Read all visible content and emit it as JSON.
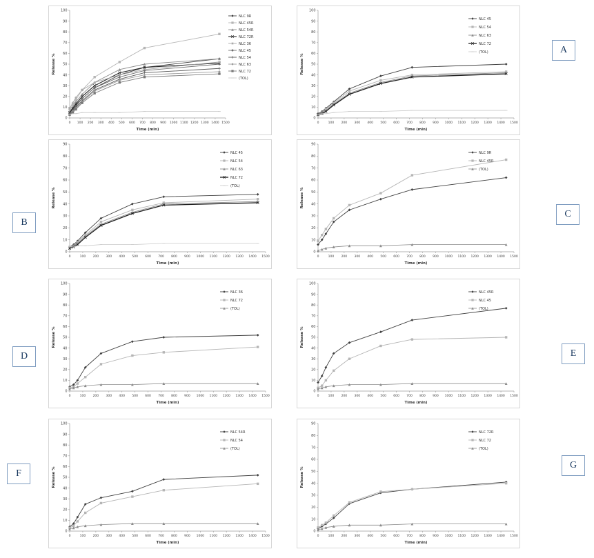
{
  "panel_labels": {
    "A": "A",
    "B": "B",
    "C": "C",
    "D": "D",
    "E": "E",
    "F": "F",
    "G": "G"
  },
  "chart_data": [
    {
      "panel": "overview",
      "type": "line",
      "x": [
        0,
        30,
        60,
        120,
        240,
        480,
        720,
        1440
      ],
      "xlabel": "Time (min)",
      "ylabel": "Release %",
      "xlim": [
        0,
        1500
      ],
      "ylim": [
        0,
        100
      ],
      "xtick_step": 100,
      "ytick_step": 10,
      "legend_position": "right",
      "grid": false,
      "series": [
        {
          "name": "NLC 9R",
          "marker": "diamond",
          "color": "#404040",
          "width": 0.9,
          "values": [
            5,
            8,
            12,
            18,
            28,
            40,
            47,
            55
          ]
        },
        {
          "name": "NLC 45R",
          "marker": "square",
          "color": "#b5b5b5",
          "width": 0.9,
          "values": [
            8,
            12,
            17,
            26,
            38,
            52,
            65,
            78
          ]
        },
        {
          "name": "NLC 54R",
          "marker": "triangle",
          "color": "#8c8c8c",
          "width": 0.9,
          "values": [
            6,
            10,
            15,
            22,
            33,
            45,
            50,
            55
          ]
        },
        {
          "name": "NLC 72R",
          "marker": "x",
          "color": "#262626",
          "width": 1.1,
          "values": [
            5,
            9,
            13,
            20,
            30,
            42,
            47,
            51
          ]
        },
        {
          "name": "NLC 36",
          "marker": "star",
          "color": "#a8a8a8",
          "width": 0.9,
          "values": [
            9,
            14,
            19,
            26,
            33,
            40,
            45,
            52
          ]
        },
        {
          "name": "NLC 45",
          "marker": "circle",
          "color": "#6e6e6e",
          "width": 0.9,
          "values": [
            4,
            7,
            11,
            18,
            28,
            38,
            44,
            50
          ]
        },
        {
          "name": "NLC 54",
          "marker": "plus",
          "color": "#585858",
          "width": 0.9,
          "values": [
            4,
            6,
            10,
            16,
            26,
            36,
            42,
            46
          ]
        },
        {
          "name": "NLC 63",
          "marker": "diamond",
          "color": "#9b9b9b",
          "width": 0.9,
          "values": [
            3,
            6,
            9,
            15,
            25,
            35,
            40,
            43
          ]
        },
        {
          "name": "NLC 72",
          "marker": "square",
          "color": "#787878",
          "width": 0.9,
          "values": [
            3,
            5,
            8,
            14,
            23,
            33,
            38,
            41
          ]
        },
        {
          "name": "(TOL)",
          "marker": "dash",
          "color": "#c6c6c6",
          "width": 0.8,
          "values": [
            3,
            4,
            4,
            5,
            5,
            5,
            6,
            6
          ]
        }
      ]
    },
    {
      "panel": "A",
      "type": "line",
      "x": [
        0,
        30,
        60,
        120,
        240,
        480,
        720,
        1440
      ],
      "xlabel": "Time (min)",
      "ylabel": "Release %",
      "xlim": [
        0,
        1500
      ],
      "ylim": [
        0,
        100
      ],
      "xtick_step": 100,
      "ytick_step": 10,
      "legend_position": "inside",
      "grid": false,
      "series": [
        {
          "name": "NLC 45",
          "marker": "diamond",
          "color": "#404040",
          "width": 0.9,
          "values": [
            4,
            6,
            9,
            15,
            27,
            39,
            47,
            50
          ]
        },
        {
          "name": "NLC 54",
          "marker": "square",
          "color": "#b5b5b5",
          "width": 0.9,
          "values": [
            3,
            5,
            8,
            14,
            25,
            35,
            40,
            43
          ]
        },
        {
          "name": "NLC 63",
          "marker": "triangle",
          "color": "#8c8c8c",
          "width": 0.9,
          "values": [
            3,
            5,
            7,
            13,
            23,
            33,
            39,
            42
          ]
        },
        {
          "name": "NLC 72",
          "marker": "x",
          "color": "#1f1f1f",
          "width": 1.3,
          "values": [
            3,
            4,
            6,
            12,
            22,
            32,
            38,
            41
          ]
        },
        {
          "name": "(TOL)",
          "marker": "dash",
          "color": "#c9c9c9",
          "width": 0.8,
          "values": [
            3,
            4,
            4,
            5,
            6,
            6,
            7,
            7
          ]
        }
      ]
    },
    {
      "panel": "B",
      "type": "line",
      "x": [
        0,
        30,
        60,
        120,
        240,
        480,
        720,
        1440
      ],
      "xlabel": "Time (min)",
      "ylabel": "Release %",
      "xlim": [
        0,
        1500
      ],
      "ylim": [
        0,
        90
      ],
      "xtick_step": 100,
      "ytick_step": 10,
      "legend_position": "inside",
      "grid": false,
      "series": [
        {
          "name": "NLC 45",
          "marker": "diamond",
          "color": "#404040",
          "width": 0.9,
          "values": [
            4,
            6,
            9,
            16,
            28,
            40,
            46,
            48
          ]
        },
        {
          "name": "NLC 54",
          "marker": "square",
          "color": "#b5b5b5",
          "width": 0.9,
          "values": [
            4,
            5,
            8,
            14,
            25,
            35,
            41,
            44
          ]
        },
        {
          "name": "NLC 63",
          "marker": "triangle",
          "color": "#8c8c8c",
          "width": 0.9,
          "values": [
            3,
            5,
            7,
            13,
            23,
            33,
            40,
            42
          ]
        },
        {
          "name": "NLC 72",
          "marker": "x",
          "color": "#1f1f1f",
          "width": 1.3,
          "values": [
            3,
            4,
            6,
            12,
            22,
            32,
            39,
            41
          ]
        },
        {
          "name": "(TOL)",
          "marker": "dash",
          "color": "#c9c9c9",
          "width": 0.8,
          "values": [
            4,
            4,
            5,
            5,
            6,
            6,
            7,
            7
          ]
        }
      ]
    },
    {
      "panel": "C",
      "type": "line",
      "x": [
        0,
        30,
        60,
        120,
        240,
        480,
        720,
        1440
      ],
      "xlabel": "Time (min)",
      "ylabel": "Release %",
      "xlim": [
        0,
        1500
      ],
      "ylim": [
        0,
        90
      ],
      "xtick_step": 100,
      "ytick_step": 10,
      "legend_position": "inside",
      "grid": false,
      "series": [
        {
          "name": "NLC 9R",
          "marker": "diamond",
          "color": "#404040",
          "width": 0.9,
          "values": [
            6,
            10,
            15,
            25,
            35,
            44,
            52,
            62
          ]
        },
        {
          "name": "NLC 45R",
          "marker": "square",
          "color": "#b5b5b5",
          "width": 0.9,
          "values": [
            9,
            14,
            19,
            28,
            39,
            49,
            64,
            77
          ]
        },
        {
          "name": "(TOL)",
          "marker": "triangle",
          "color": "#8c8c8c",
          "width": 0.8,
          "values": [
            1,
            2,
            3,
            4,
            5,
            5,
            6,
            6
          ]
        }
      ]
    },
    {
      "panel": "D",
      "type": "line",
      "x": [
        0,
        30,
        60,
        120,
        240,
        480,
        720,
        1440
      ],
      "xlabel": "Time (min)",
      "ylabel": "Release %",
      "xlim": [
        0,
        1500
      ],
      "ylim": [
        0,
        100
      ],
      "xtick_step": 100,
      "ytick_step": 10,
      "legend_position": "inside",
      "grid": false,
      "series": [
        {
          "name": "NLC 36",
          "marker": "diamond",
          "color": "#404040",
          "width": 0.9,
          "values": [
            4,
            6,
            10,
            22,
            35,
            46,
            50,
            52
          ]
        },
        {
          "name": "NLC 72",
          "marker": "square",
          "color": "#b5b5b5",
          "width": 0.9,
          "values": [
            3,
            4,
            7,
            13,
            25,
            33,
            36,
            41
          ]
        },
        {
          "name": "(TOL)",
          "marker": "triangle",
          "color": "#8c8c8c",
          "width": 0.8,
          "values": [
            2,
            3,
            4,
            5,
            6,
            6,
            7,
            7
          ]
        }
      ]
    },
    {
      "panel": "E",
      "type": "line",
      "x": [
        0,
        30,
        60,
        120,
        240,
        480,
        720,
        1440
      ],
      "xlabel": "Time (min)",
      "ylabel": "Release %",
      "xlim": [
        0,
        1500
      ],
      "ylim": [
        0,
        100
      ],
      "xtick_step": 100,
      "ytick_step": 10,
      "legend_position": "inside",
      "grid": false,
      "series": [
        {
          "name": "NLC 45R",
          "marker": "diamond",
          "color": "#404040",
          "width": 0.9,
          "values": [
            8,
            14,
            22,
            35,
            45,
            55,
            66,
            77
          ]
        },
        {
          "name": "NLC 45",
          "marker": "square",
          "color": "#b5b5b5",
          "width": 0.9,
          "values": [
            3,
            5,
            10,
            19,
            30,
            42,
            48,
            50
          ]
        },
        {
          "name": "(TOL)",
          "marker": "triangle",
          "color": "#8c8c8c",
          "width": 0.8,
          "values": [
            2,
            3,
            4,
            5,
            6,
            6,
            7,
            7
          ]
        }
      ]
    },
    {
      "panel": "F",
      "type": "line",
      "x": [
        0,
        30,
        60,
        120,
        240,
        480,
        720,
        1440
      ],
      "xlabel": "Time (min)",
      "ylabel": "Release %",
      "xlim": [
        0,
        1500
      ],
      "ylim": [
        0,
        100
      ],
      "xtick_step": 100,
      "ytick_step": 10,
      "legend_position": "inside",
      "grid": false,
      "series": [
        {
          "name": "NLC 54R",
          "marker": "diamond",
          "color": "#404040",
          "width": 0.9,
          "values": [
            4,
            7,
            13,
            25,
            31,
            37,
            48,
            52
          ]
        },
        {
          "name": "NLC 54",
          "marker": "square",
          "color": "#b5b5b5",
          "width": 0.9,
          "values": [
            3,
            5,
            9,
            17,
            26,
            32,
            38,
            44
          ]
        },
        {
          "name": "(TOL)",
          "marker": "triangle",
          "color": "#8c8c8c",
          "width": 0.8,
          "values": [
            2,
            3,
            4,
            5,
            6,
            7,
            7,
            7
          ]
        }
      ]
    },
    {
      "panel": "G",
      "type": "line",
      "x": [
        0,
        30,
        60,
        120,
        240,
        480,
        720,
        1440
      ],
      "xlabel": "Time (min)",
      "ylabel": "Release %",
      "xlim": [
        0,
        1500
      ],
      "ylim": [
        0,
        90
      ],
      "xtick_step": 100,
      "ytick_step": 10,
      "legend_position": "inside",
      "grid": false,
      "series": [
        {
          "name": "NLC 72R",
          "marker": "diamond",
          "color": "#404040",
          "width": 0.9,
          "values": [
            2,
            4,
            6,
            11,
            23,
            32,
            35,
            41
          ]
        },
        {
          "name": "NLC 72",
          "marker": "square",
          "color": "#b5b5b5",
          "width": 0.9,
          "values": [
            3,
            5,
            7,
            13,
            24,
            33,
            35,
            40
          ]
        },
        {
          "name": "(TOL)",
          "marker": "triangle",
          "color": "#8c8c8c",
          "width": 0.8,
          "values": [
            1,
            2,
            3,
            4,
            5,
            5,
            6,
            6
          ]
        }
      ]
    }
  ]
}
